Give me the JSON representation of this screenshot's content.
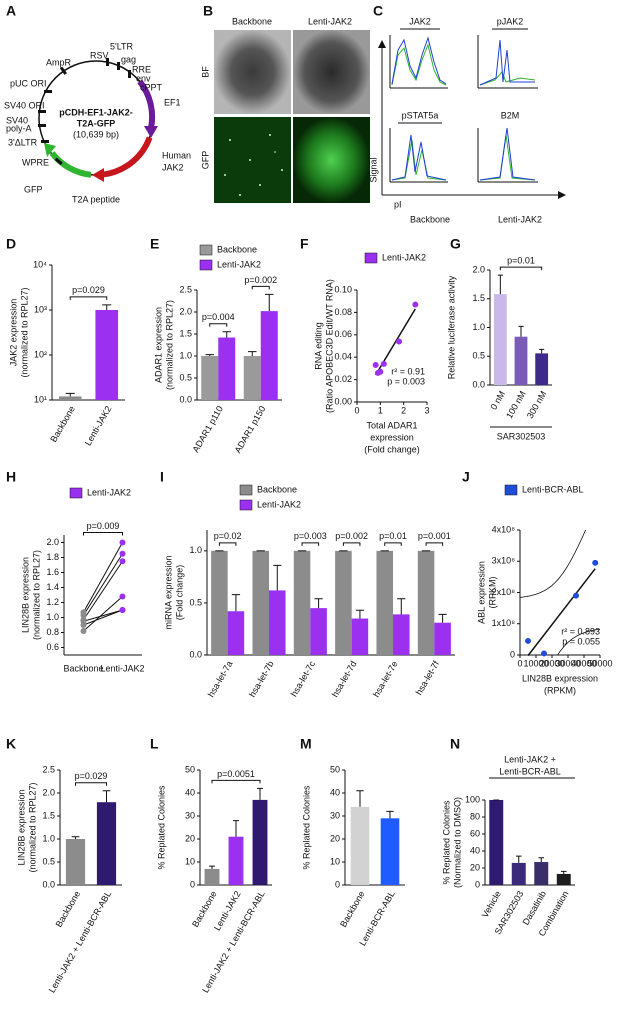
{
  "panel_a": {
    "panel": "A",
    "title_lines": [
      "pCDH-EF1-JAK2-",
      "T2A-GFP"
    ],
    "size": "(10,639 bp)",
    "features": [
      "5'LTR",
      "RSV",
      "gag",
      "RRE",
      "env",
      "cPPT",
      "AmpR",
      "pUC ORI",
      "SV40 ORI",
      "SV40",
      "poly-A",
      "3'ΔLTR",
      "WPRE",
      "EF1",
      "Human",
      "JAK2",
      "GFP",
      "T2A peptide"
    ]
  },
  "panel_b": {
    "panel": "B",
    "columns": [
      "Backbone",
      "Lenti-JAK2"
    ],
    "rows": [
      "BF",
      "GFP"
    ]
  },
  "panel_c": {
    "panel": "C",
    "proteins": [
      "JAK2",
      "pJAK2",
      "pSTAT5a",
      "B2M"
    ],
    "y_label": "Signal",
    "x_label": "pI",
    "legend": [
      "Backbone",
      "Lenti-JAK2"
    ]
  },
  "chart_data": [
    {
      "panel": "D",
      "type": "bar",
      "ylabel": "JAK2 expression",
      "ylabel_sub": "(normalized to RPL27)",
      "categories": [
        "Backbone",
        "Lenti-JAK2"
      ],
      "values": [
        12,
        1000
      ],
      "errors": [
        2,
        300
      ],
      "colors": [
        "#8c8c8c",
        "#9b30f0"
      ],
      "log_scale": true,
      "ylim": [
        10,
        10000
      ],
      "yticks": [
        {
          "value": 10,
          "label": "10¹"
        },
        {
          "value": 100,
          "label": "10²"
        },
        {
          "value": 1000,
          "label": "10³"
        },
        {
          "value": 10000,
          "label": "10⁴"
        }
      ],
      "annotations": [
        "p=0.029"
      ]
    },
    {
      "panel": "E",
      "type": "bar",
      "ylabel": "ADAR1 expression",
      "ylabel_sub": "(normalized to RPL27)",
      "categories": [
        "ADAR1 p110",
        "ADAR1 p150"
      ],
      "series": [
        {
          "name": "Backbone",
          "color": "#9a9a9a",
          "values": [
            1.0,
            1.0
          ],
          "errors": [
            0.03,
            0.1
          ]
        },
        {
          "name": "Lenti-JAK2",
          "color": "#9b30f0",
          "values": [
            1.42,
            2.02
          ],
          "errors": [
            0.13,
            0.38
          ]
        }
      ],
      "ylim": [
        0,
        2.5
      ],
      "yticks": [
        {
          "value": 0,
          "label": "0.0"
        },
        0.5,
        {
          "value": 1,
          "label": "1.0"
        },
        1.5,
        {
          "value": 2,
          "label": "2.0"
        },
        2.5
      ],
      "annotations": [
        "p=0.004",
        "p=0.002"
      ]
    },
    {
      "panel": "F",
      "type": "scatter",
      "ylabel": "RNA editing",
      "ylabel_sub": "(Ratio APOBEC3D Edit/WT RNA)",
      "xlabel_lines": [
        "Total ADAR1",
        "expression"
      ],
      "xlabel_sub": "(Fold change)",
      "series": [
        {
          "name": "Lenti-JAK2",
          "color": "#9b30f0",
          "x": [
            0.8,
            0.9,
            1.0,
            1.15,
            1.8,
            2.5
          ],
          "values": [
            0.033,
            0.026,
            0.027,
            0.034,
            0.054,
            0.087
          ]
        }
      ],
      "xlim": [
        0,
        3
      ],
      "xticks": [
        0,
        1,
        2,
        3
      ],
      "ylim": [
        0,
        0.1
      ],
      "yticks": [
        {
          "value": 0,
          "label": "0.00"
        },
        0.02,
        0.04,
        0.06,
        0.08,
        {
          "value": 0.1,
          "label": "0.10"
        }
      ],
      "fit_line": true,
      "confidence_band": false,
      "annotations": [
        "r² = 0.91",
        "p = 0.003"
      ]
    },
    {
      "panel": "G",
      "type": "bar",
      "ylabel": "Relative luciferase activity",
      "categories": [
        "0 nM",
        "100 nM",
        "300 nM"
      ],
      "values": [
        1.58,
        0.84,
        0.55
      ],
      "errors": [
        0.33,
        0.18,
        0.07
      ],
      "colors": [
        "#c9b8e8",
        "#7a5cb8",
        "#3d2a8a"
      ],
      "ylim": [
        0,
        2
      ],
      "yticks": [
        {
          "value": 0,
          "label": "0.0"
        },
        0.5,
        {
          "value": 1,
          "label": "1.0"
        },
        1.5,
        {
          "value": 2,
          "label": "2.0"
        }
      ],
      "xgroup_label": "SAR302503",
      "annotations": [
        "p=0.01"
      ]
    },
    {
      "panel": "H",
      "type": "paired",
      "ylabel": "LIN28B expression",
      "ylabel_sub": "(normalized to RPL27)",
      "categories": [
        "Backbone",
        "Lenti-JAK2"
      ],
      "values": [
        [
          0.82,
          0.9,
          0.97,
          1.03,
          1.07,
          0.95
        ],
        [
          1.28,
          1.1,
          1.75,
          1.85,
          2.0,
          1.1
        ]
      ],
      "colors": [
        "#8c8c8c",
        "#9b30f0"
      ],
      "legend": "Lenti-JAK2",
      "ylim": [
        0.5,
        2.1
      ],
      "yticks": [
        0.6,
        0.8,
        {
          "value": 1,
          "label": "1.0"
        },
        1.2,
        1.4,
        1.6,
        1.8,
        {
          "value": 2,
          "label": "2.0"
        }
      ],
      "annotations": [
        "p=0.009"
      ]
    },
    {
      "panel": "I",
      "type": "bar",
      "ylabel": "miRNA expression",
      "ylabel_sub": "(Fold change)",
      "categories": [
        "hsa-let-7a",
        "hsa-let-7b",
        "hsa-let-7c",
        "hsa-let-7d",
        "hsa-let-7e",
        "hsa-let-7f"
      ],
      "series": [
        {
          "name": "Backbone",
          "color": "#8c8c8c",
          "values": [
            1.0,
            1.0,
            1.0,
            1.0,
            1.0,
            1.0
          ],
          "errors": [
            0,
            0,
            0,
            0,
            0,
            0
          ]
        },
        {
          "name": "Lenti-JAK2",
          "color": "#9b30f0",
          "values": [
            0.42,
            0.62,
            0.45,
            0.35,
            0.39,
            0.31
          ],
          "errors": [
            0.16,
            0.24,
            0.09,
            0.08,
            0.15,
            0.08
          ]
        }
      ],
      "ylim": [
        0,
        1.2
      ],
      "yticks": [
        {
          "value": 0,
          "label": "0.0"
        },
        0.5,
        {
          "value": 1,
          "label": "1.0"
        }
      ],
      "annotations": [
        "p=0.02",
        null,
        "p=0.003",
        "p=0.002",
        "p=0.01",
        "p=0.001"
      ]
    },
    {
      "panel": "J",
      "type": "scatter",
      "ylabel": "ABL expression",
      "ylabel_sub": "(RPKM)",
      "xlabel_lines": [
        "LIN28B  expression"
      ],
      "xlabel_sub": "(RPKM)",
      "series": [
        {
          "name": "Lenti-BCR-ABL",
          "color": "#1f4fd8",
          "x": [
            5000,
            15000,
            35000,
            47000
          ],
          "values": [
            45000000,
            5000000,
            190000000,
            295000000
          ]
        }
      ],
      "xlim": [
        0,
        50000
      ],
      "xticks": [
        0,
        10000,
        20000,
        30000,
        40000,
        50000
      ],
      "ylim": [
        0,
        400000000
      ],
      "yticks": [
        0,
        {
          "value": 100000000,
          "label": "1x10⁸"
        },
        {
          "value": 200000000,
          "label": "2x10⁸"
        },
        {
          "value": 300000000,
          "label": "3x10⁸"
        },
        {
          "value": 400000000,
          "label": "4x10⁸"
        }
      ],
      "fit_line": true,
      "confidence_band": true,
      "annotations": [
        "r² = 0.893",
        "p = 0.055"
      ]
    },
    {
      "panel": "K",
      "type": "bar",
      "ylabel": "LIN28B expression",
      "ylabel_sub": "(normalized to RPL27)",
      "categories": [
        "Backbone",
        "Lenti-JAK2 + Lenti-BCR-ABL"
      ],
      "values": [
        1.0,
        1.8
      ],
      "errors": [
        0.05,
        0.25
      ],
      "colors": [
        "#8c8c8c",
        "#2e1a6e"
      ],
      "ylim": [
        0,
        2.5
      ],
      "yticks": [
        {
          "value": 0,
          "label": "0.0"
        },
        0.5,
        {
          "value": 1,
          "label": "1.0"
        },
        1.5,
        {
          "value": 2,
          "label": "2.0"
        },
        2.5
      ],
      "annotations": [
        "p=0.029"
      ]
    },
    {
      "panel": "L",
      "type": "bar",
      "ylabel": "% Replated Colonies",
      "categories": [
        "Backbone",
        "Lenti-JAK2",
        "Lenti-JAK2 + Lenti-BCR-ABL"
      ],
      "values": [
        7,
        21,
        37
      ],
      "errors": [
        1.2,
        7,
        5
      ],
      "colors": [
        "#8c8c8c",
        "#9b30f0",
        "#2e1a6e"
      ],
      "ylim": [
        0,
        50
      ],
      "yticks": [
        0,
        10,
        20,
        30,
        40,
        50
      ],
      "annotations": [
        "p=0.0051"
      ]
    },
    {
      "panel": "M",
      "type": "bar",
      "ylabel": "% Replated Colonies",
      "categories": [
        "Backbone",
        "Lenti-BCR-ABL"
      ],
      "values": [
        34,
        29
      ],
      "errors": [
        7,
        3
      ],
      "colors": [
        "#d2d2d2",
        "#1f5bff"
      ],
      "ylim": [
        0,
        50
      ],
      "yticks": [
        0,
        10,
        20,
        30,
        40,
        50
      ]
    },
    {
      "panel": "N",
      "type": "bar",
      "title_lines": [
        "Lenti-JAK2 +",
        "Lenti-BCR-ABL"
      ],
      "ylabel": "% Replated Colonies",
      "ylabel_sub": "(Normalized to DMSO)",
      "categories": [
        "Vehicle",
        "SAR302503",
        "Dasatinib",
        "Combination"
      ],
      "values": [
        100,
        26,
        27,
        13
      ],
      "errors": [
        0,
        8,
        5,
        3
      ],
      "colors": [
        "#2e1a6e",
        "#3b2a7c",
        "#3a2e6a",
        "#1e1e1e"
      ],
      "ylim": [
        0,
        100
      ],
      "yticks": [
        0,
        20,
        40,
        60,
        80,
        100
      ]
    }
  ]
}
